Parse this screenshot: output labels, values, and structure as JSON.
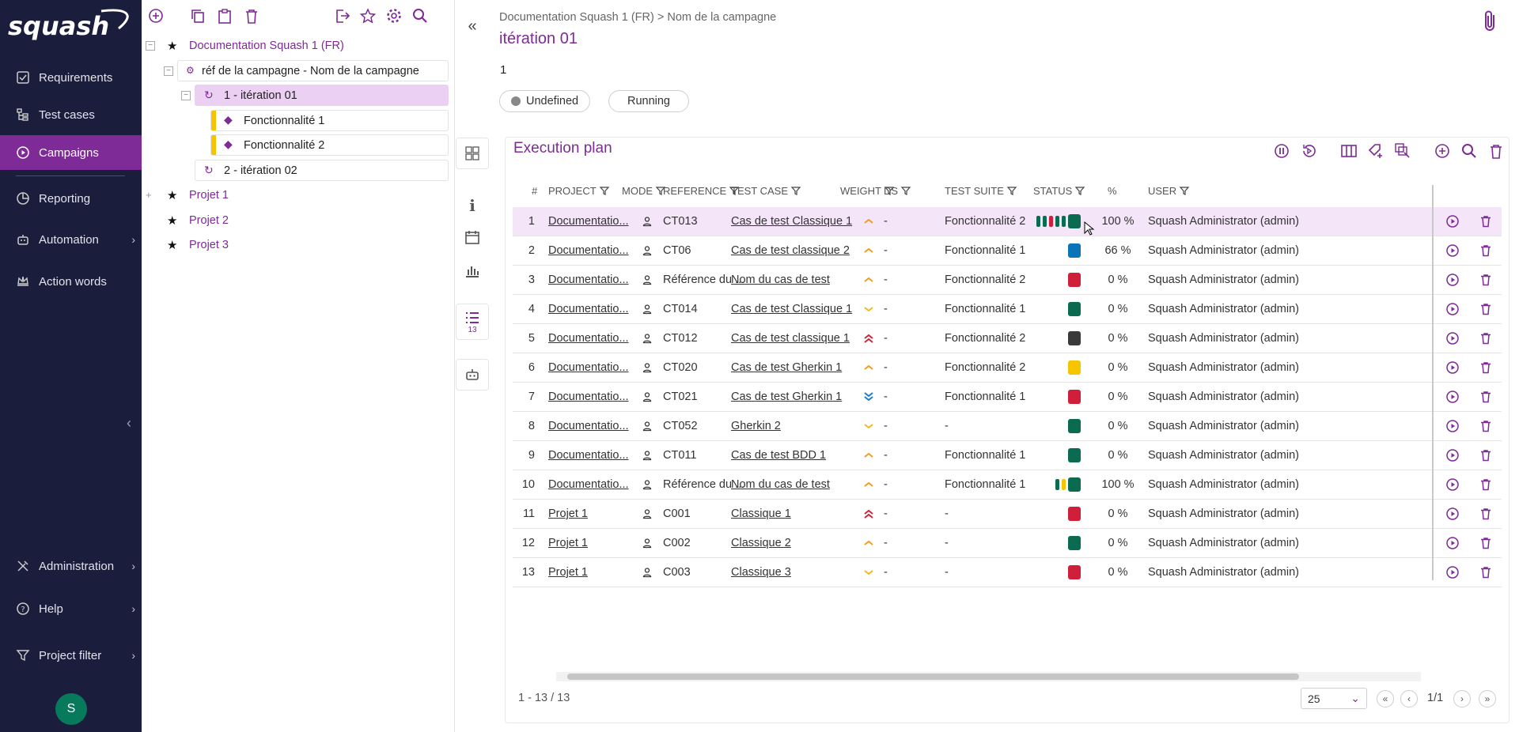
{
  "nav": {
    "logo": "squash",
    "items": [
      {
        "label": "Requirements",
        "icon": "check-square-icon"
      },
      {
        "label": "Test cases",
        "icon": "tree-icon"
      },
      {
        "label": "Campaigns",
        "icon": "play-circle-icon"
      },
      {
        "label": "Reporting",
        "icon": "pie-chart-icon"
      },
      {
        "label": "Automation",
        "icon": "robot-icon"
      },
      {
        "label": "Action words",
        "icon": "crown-icon"
      }
    ],
    "bottom": [
      {
        "label": "Administration",
        "icon": "tools-icon"
      },
      {
        "label": "Help",
        "icon": "help-icon"
      },
      {
        "label": "Project filter",
        "icon": "filter-icon"
      }
    ],
    "avatar": "S",
    "accent": "#7e2a97",
    "bg": "#1a1d3b"
  },
  "tree": {
    "nodes": [
      {
        "label": "Documentation Squash 1 (FR)"
      },
      {
        "label": "réf de la campagne - Nom de la campagne"
      },
      {
        "label": "1 - itération 01"
      },
      {
        "label": "Fonctionnalité 1"
      },
      {
        "label": "Fonctionnalité 2"
      },
      {
        "label": "2 - itération 02"
      },
      {
        "label": "Projet 1"
      },
      {
        "label": "Projet 2"
      },
      {
        "label": "Projet 3"
      }
    ]
  },
  "header": {
    "breadcrumb": "Documentation Squash 1 (FR) > Nom de la campagne",
    "title": "itération 01",
    "reference": "1",
    "status_undefined": "Undefined",
    "status_running": "Running"
  },
  "side": {
    "plan_count": "13"
  },
  "plan": {
    "title": "Execution plan",
    "columns": [
      "#",
      "PROJECT",
      "MODE",
      "REFERENCE",
      "TEST CASE",
      "WEIGHT",
      "DS",
      "TEST SUITE",
      "STATUS",
      "%",
      "USER"
    ],
    "rows": [
      {
        "n": "1",
        "project": "Documentatio...",
        "ref": "CT013",
        "tc": "Cas de test Classique 1",
        "weight": "medium",
        "ds": "-",
        "suite": "Fonctionnalité 2",
        "status": "#0b6b50",
        "mini": [
          "#0b6b50",
          "#0b6b50",
          "#d01f3a",
          "#0b6b50",
          "#0b6b50"
        ],
        "pct": "100 %",
        "user": "Squash Administrator (admin)"
      },
      {
        "n": "2",
        "project": "Documentatio...",
        "ref": "CT06",
        "tc": "Cas de test classique 2",
        "weight": "medium",
        "ds": "-",
        "suite": "Fonctionnalité 1",
        "status": "#0a74b8",
        "mini": [],
        "pct": "66 %",
        "user": "Squash Administrator (admin)"
      },
      {
        "n": "3",
        "project": "Documentatio...",
        "ref": "Référence du ...",
        "tc": "Nom du cas de test",
        "weight": "medium",
        "ds": "-",
        "suite": "Fonctionnalité 2",
        "status": "#d01f3a",
        "mini": [],
        "pct": "0 %",
        "user": "Squash Administrator (admin)"
      },
      {
        "n": "4",
        "project": "Documentatio...",
        "ref": "CT014",
        "tc": "Cas de test Classique 1",
        "weight": "low",
        "ds": "-",
        "suite": "Fonctionnalité 1",
        "status": "#0b6b50",
        "mini": [],
        "pct": "0 %",
        "user": "Squash Administrator (admin)"
      },
      {
        "n": "5",
        "project": "Documentatio...",
        "ref": "CT012",
        "tc": "Cas de test classique 1",
        "weight": "very-high",
        "ds": "-",
        "suite": "Fonctionnalité 2",
        "status": "#3a3a3a",
        "mini": [],
        "pct": "0 %",
        "user": "Squash Administrator (admin)"
      },
      {
        "n": "6",
        "project": "Documentatio...",
        "ref": "CT020",
        "tc": "Cas de test Gherkin 1",
        "weight": "medium",
        "ds": "-",
        "suite": "Fonctionnalité 2",
        "status": "#f7c400",
        "mini": [],
        "pct": "0 %",
        "user": "Squash Administrator (admin)"
      },
      {
        "n": "7",
        "project": "Documentatio...",
        "ref": "CT021",
        "tc": "Cas de test Gherkin 1",
        "weight": "very-low",
        "ds": "-",
        "suite": "Fonctionnalité 1",
        "status": "#d01f3a",
        "mini": [],
        "pct": "0 %",
        "user": "Squash Administrator (admin)"
      },
      {
        "n": "8",
        "project": "Documentatio...",
        "ref": "CT052",
        "tc": "Gherkin 2",
        "weight": "low",
        "ds": "-",
        "suite": "-",
        "status": "#0b6b50",
        "mini": [],
        "pct": "0 %",
        "user": "Squash Administrator (admin)"
      },
      {
        "n": "9",
        "project": "Documentatio...",
        "ref": "CT011",
        "tc": "Cas de test BDD 1",
        "weight": "medium",
        "ds": "-",
        "suite": "Fonctionnalité 1",
        "status": "#0b6b50",
        "mini": [],
        "pct": "0 %",
        "user": "Squash Administrator (admin)"
      },
      {
        "n": "10",
        "project": "Documentatio...",
        "ref": "Référence du ...",
        "tc": "Nom du cas de test",
        "weight": "medium",
        "ds": "-",
        "suite": "Fonctionnalité 1",
        "status": "#0b6b50",
        "mini": [
          "#0b6b50",
          "#f7c400"
        ],
        "pct": "100 %",
        "user": "Squash Administrator (admin)"
      },
      {
        "n": "11",
        "project": "Projet 1",
        "ref": "C001",
        "tc": "Classique 1",
        "weight": "very-high",
        "ds": "-",
        "suite": "-",
        "status": "#d01f3a",
        "mini": [],
        "pct": "0 %",
        "user": "Squash Administrator (admin)"
      },
      {
        "n": "12",
        "project": "Projet 1",
        "ref": "C002",
        "tc": "Classique 2",
        "weight": "medium",
        "ds": "-",
        "suite": "-",
        "status": "#0b6b50",
        "mini": [],
        "pct": "0 %",
        "user": "Squash Administrator (admin)"
      },
      {
        "n": "13",
        "project": "Projet 1",
        "ref": "C003",
        "tc": "Classique 3",
        "weight": "low",
        "ds": "-",
        "suite": "-",
        "status": "#d01f3a",
        "mini": [],
        "pct": "0 %",
        "user": "Squash Administrator (admin)"
      }
    ],
    "count": "1 - 13 / 13",
    "page_size": "25",
    "page": "1/1",
    "weight_colors": {
      "medium": "#f39b1e",
      "low": "#f2b81c",
      "very-high": "#c8263c",
      "very-low": "#1c7ec9"
    }
  }
}
